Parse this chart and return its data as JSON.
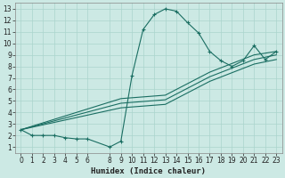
{
  "xlabel": "Humidex (Indice chaleur)",
  "bg_color": "#cce9e4",
  "grid_color": "#aad4cc",
  "line_color": "#1a6e62",
  "xlim": [
    -0.5,
    23.5
  ],
  "ylim": [
    0.5,
    13.5
  ],
  "xticks": [
    0,
    1,
    2,
    3,
    4,
    5,
    6,
    8,
    9,
    10,
    11,
    12,
    13,
    14,
    15,
    16,
    17,
    18,
    19,
    20,
    21,
    22,
    23
  ],
  "yticks": [
    1,
    2,
    3,
    4,
    5,
    6,
    7,
    8,
    9,
    10,
    11,
    12,
    13
  ],
  "series1_x": [
    0,
    1,
    2,
    3,
    4,
    5,
    6,
    8,
    9,
    10,
    11,
    12,
    13,
    14,
    15,
    16,
    17,
    18,
    19,
    20,
    21,
    22,
    23
  ],
  "series1_y": [
    2.5,
    2.0,
    2.0,
    2.0,
    1.8,
    1.7,
    1.7,
    1.0,
    1.5,
    7.2,
    11.2,
    12.5,
    13.0,
    12.8,
    11.8,
    10.9,
    9.3,
    8.5,
    8.0,
    8.5,
    9.8,
    8.6,
    9.3
  ],
  "series2_x": [
    0,
    9,
    13,
    17,
    21,
    23
  ],
  "series2_y": [
    2.5,
    5.2,
    5.5,
    7.5,
    9.0,
    9.3
  ],
  "series3_x": [
    0,
    9,
    13,
    17,
    21,
    23
  ],
  "series3_y": [
    2.5,
    4.8,
    5.1,
    7.1,
    8.6,
    9.0
  ],
  "series4_x": [
    0,
    9,
    13,
    17,
    21,
    23
  ],
  "series4_y": [
    2.5,
    4.4,
    4.7,
    6.7,
    8.2,
    8.6
  ]
}
